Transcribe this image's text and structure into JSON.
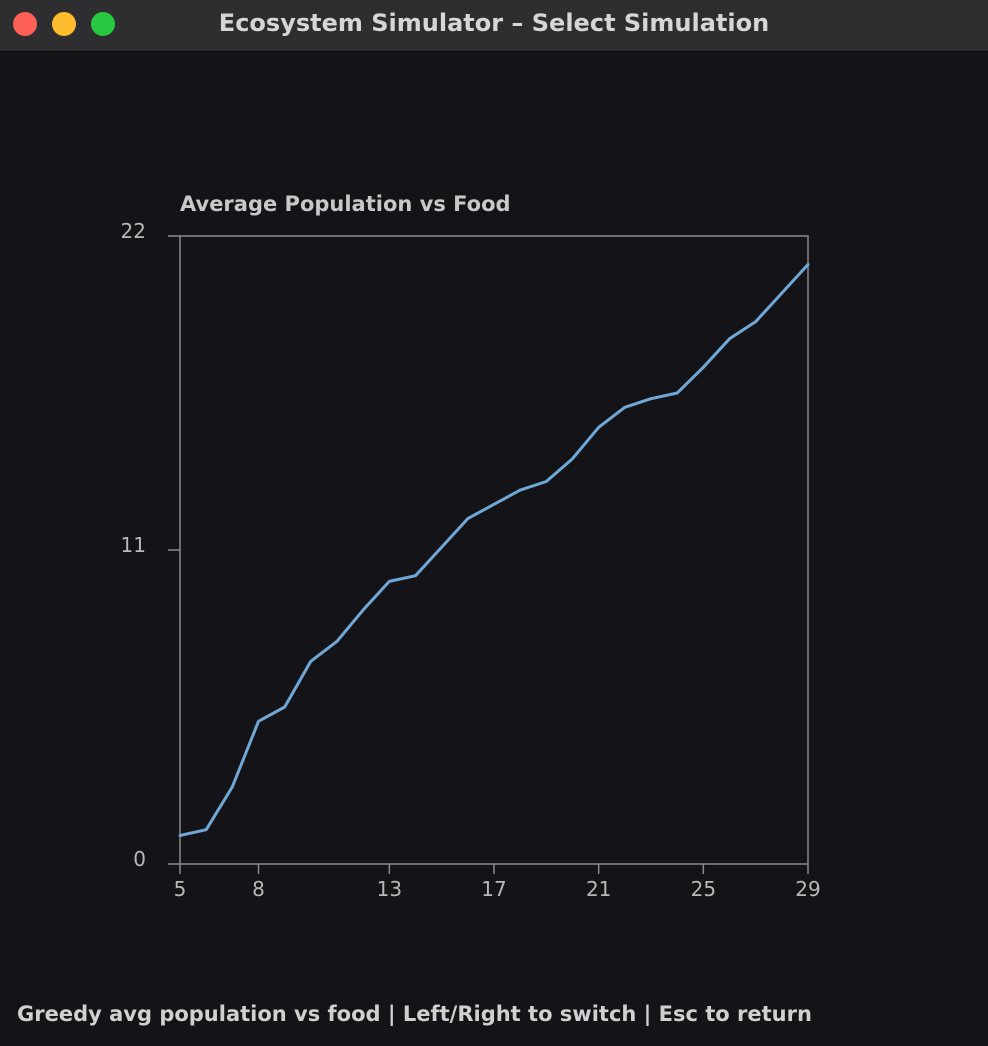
{
  "window": {
    "title": "Ecosystem Simulator – Select Simulation"
  },
  "colors": {
    "background": "#141418",
    "axis": "#8a8a8e",
    "series": "#6fa8d6",
    "text": "#c8c8c8"
  },
  "chart_data": {
    "type": "line",
    "title": "Average Population vs Food",
    "xlabel": "",
    "ylabel": "",
    "xlim": [
      5,
      29
    ],
    "ylim": [
      0,
      22
    ],
    "xticks": [
      5,
      8,
      13,
      17,
      21,
      25,
      29
    ],
    "xtick_labels": [
      "5",
      "8",
      "13",
      "17",
      "21",
      "25",
      "29"
    ],
    "yticks": [
      0,
      11,
      22
    ],
    "ytick_labels": [
      "0",
      "11",
      "22"
    ],
    "grid": false,
    "legend": "none",
    "series": [
      {
        "color": "#6fa8d6",
        "x": [
          5,
          6,
          7,
          8,
          9,
          10,
          11,
          12,
          13,
          14,
          15,
          16,
          17,
          18,
          19,
          20,
          21,
          22,
          23,
          24,
          25,
          26,
          27,
          28,
          29
        ],
        "y": [
          1.0,
          1.2,
          2.7,
          5.0,
          5.5,
          7.1,
          7.8,
          8.9,
          9.9,
          10.1,
          11.1,
          12.1,
          12.6,
          13.1,
          13.4,
          14.2,
          15.3,
          16.0,
          16.3,
          16.5,
          17.4,
          18.4,
          19.0,
          20.0,
          21.0
        ]
      }
    ]
  },
  "status": {
    "text": "Greedy avg population vs food | Left/Right to switch | Esc to return"
  }
}
